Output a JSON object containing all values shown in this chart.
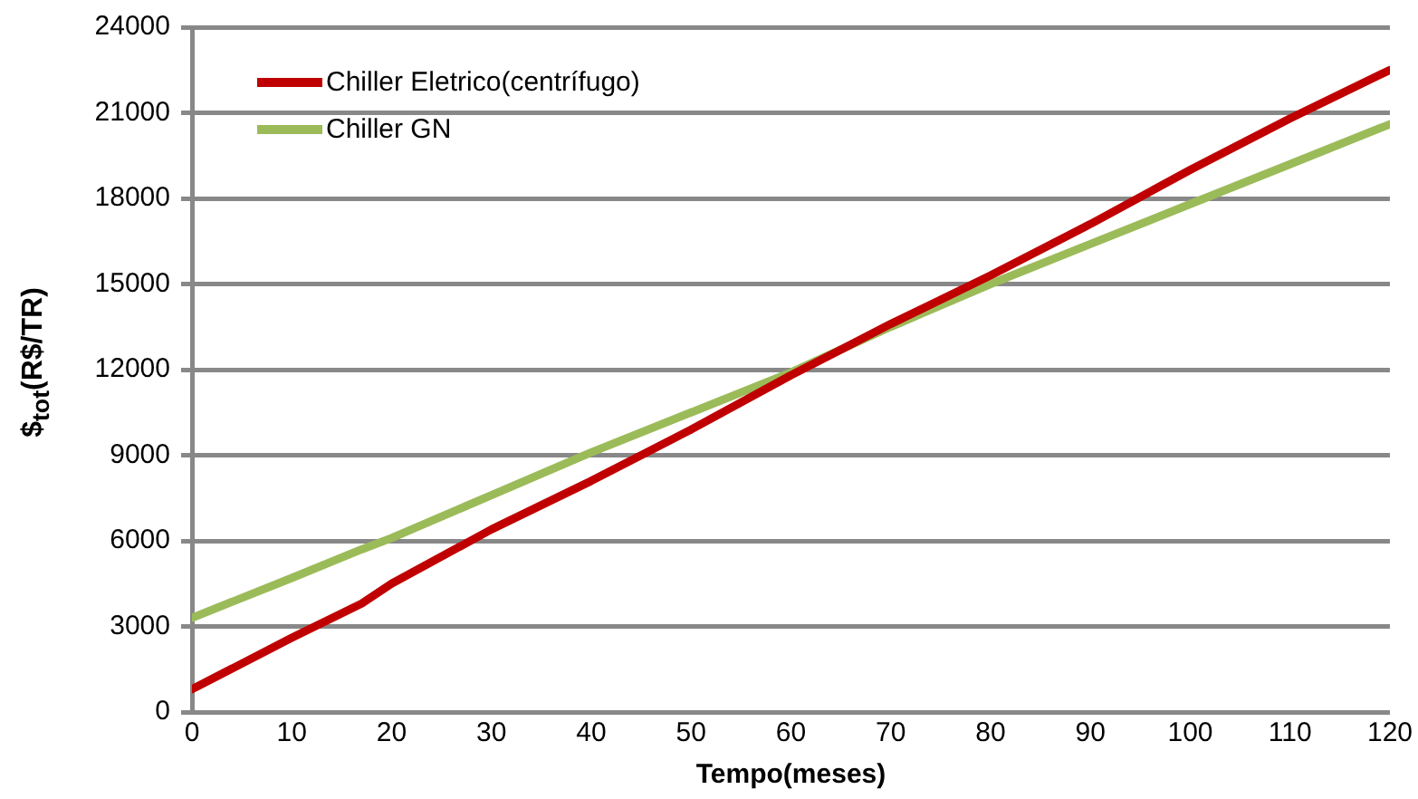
{
  "chart_data": {
    "type": "line",
    "xlabel": "Tempo(meses)",
    "ylabel": "$$_{tot}$(R$/TR)",
    "x": [
      0,
      10,
      17,
      20,
      30,
      40,
      50,
      60,
      65,
      70,
      80,
      90,
      100,
      110,
      120
    ],
    "series": [
      {
        "name": "Chiller Eletrico(centrífugo)",
        "color": "#c00000",
        "values": [
          800,
          2600,
          3800,
          4500,
          6400,
          8100,
          9900,
          11800,
          12700,
          13600,
          15300,
          17100,
          19000,
          20800,
          22500
        ]
      },
      {
        "name": "Chiller GN",
        "color": "#9bbb59",
        "values": [
          3300,
          4700,
          5700,
          6100,
          7600,
          9100,
          10500,
          11900,
          12700,
          13500,
          15000,
          16400,
          17800,
          19200,
          20600
        ]
      }
    ],
    "xlim": [
      0,
      120
    ],
    "xticks": [
      0,
      10,
      20,
      30,
      40,
      50,
      60,
      70,
      80,
      90,
      100,
      110,
      120
    ],
    "ylim": [
      0,
      24000
    ],
    "yticks": [
      0,
      3000,
      6000,
      9000,
      12000,
      15000,
      18000,
      21000,
      24000
    ],
    "grid": "y",
    "legend": "top left",
    "marker": "none",
    "line_style": "solid"
  }
}
